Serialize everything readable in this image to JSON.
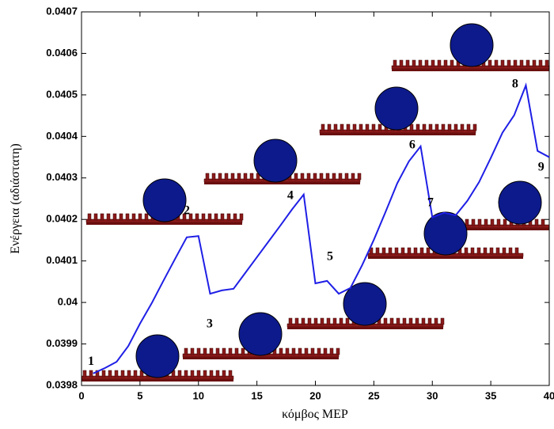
{
  "chart_data": {
    "type": "line",
    "x_label": "κόμβος MEP",
    "y_label": "Ενέργεια (αδιάστατη)",
    "x": [
      1,
      2,
      3,
      4,
      5,
      6,
      7,
      8,
      9,
      10,
      11,
      12,
      13,
      14,
      15,
      16,
      17,
      18,
      19,
      20,
      21,
      22,
      23,
      24,
      25,
      26,
      27,
      28,
      29,
      30,
      31,
      32,
      33,
      34,
      35,
      36,
      37,
      38,
      39,
      40
    ],
    "series": [
      {
        "color": "#1f1fe6",
        "values": [
          0.039829,
          0.039842,
          0.039857,
          0.039895,
          0.039949,
          0.039998,
          0.040052,
          0.040105,
          0.040157,
          0.04016,
          0.040021,
          0.040029,
          0.040033,
          0.040071,
          0.040109,
          0.040147,
          0.040185,
          0.040224,
          0.04026,
          0.040046,
          0.040052,
          0.040021,
          0.040035,
          0.04009,
          0.040151,
          0.040218,
          0.040287,
          0.04034,
          0.040376,
          0.040205,
          0.040216,
          0.04021,
          0.040245,
          0.04029,
          0.040348,
          0.040409,
          0.040451,
          0.040523,
          0.040365,
          0.04035
        ]
      }
    ],
    "xlim": [
      0,
      40
    ],
    "xticks": [
      0,
      5,
      10,
      15,
      20,
      25,
      30,
      35,
      40
    ],
    "ylim": [
      0.0398,
      0.0407
    ],
    "yticks": [
      0.0398,
      0.0399,
      0.04,
      0.0401,
      0.0402,
      0.0403,
      0.0404,
      0.0405,
      0.0406,
      0.0407
    ],
    "grid": false,
    "annotations": [
      {
        "text": "1",
        "x": 0.81,
        "y": 0.039857
      },
      {
        "text": "2",
        "x": 9.0,
        "y": 0.04022
      },
      {
        "text": "3",
        "x": 10.96,
        "y": 0.039947
      },
      {
        "text": "4",
        "x": 17.86,
        "y": 0.040256
      },
      {
        "text": "5",
        "x": 21.25,
        "y": 0.040109
      },
      {
        "text": "6",
        "x": 28.28,
        "y": 0.040378
      },
      {
        "text": "7",
        "x": 29.84,
        "y": 0.040239
      },
      {
        "text": "8",
        "x": 37.08,
        "y": 0.040525
      },
      {
        "text": "9",
        "x": 39.31,
        "y": 0.040325
      }
    ]
  }
}
